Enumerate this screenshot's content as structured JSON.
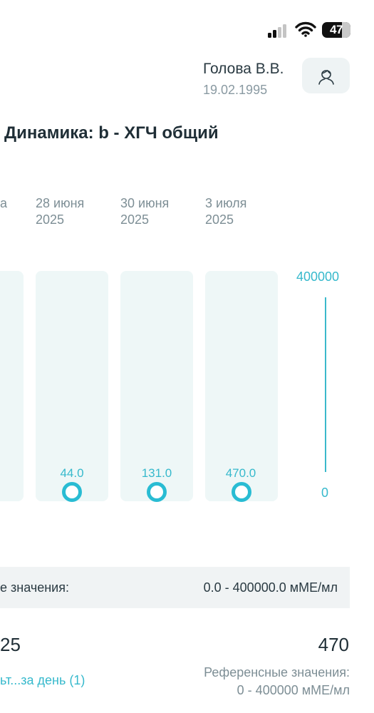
{
  "status_bar": {
    "battery": "47"
  },
  "patient": {
    "name": "Голова В.В.",
    "birth_date": "19.02.1995"
  },
  "chart_title": "Динамика: b - ХГЧ общий",
  "chart_data": {
    "type": "scatter",
    "title": "Динамика: b - ХГЧ общий",
    "partial_first_label": "а",
    "categories": [
      {
        "date": "28 июня",
        "year": "2025"
      },
      {
        "date": "30 июня",
        "year": "2025"
      },
      {
        "date": "3 июля",
        "year": "2025"
      }
    ],
    "values": [
      44.0,
      131.0,
      470.0
    ],
    "value_labels": [
      "44.0",
      "131.0",
      "470.0"
    ],
    "ylim": [
      0,
      400000
    ],
    "y_max_label": "400000",
    "y_min_label": "0"
  },
  "reference": {
    "label_partial": "е значения:",
    "value": "0.0 - 400000.0 мМЕ/мл"
  },
  "summary": {
    "left_value_partial": "25",
    "link_partial": "ьт...за день (1)",
    "right_value": "470",
    "ref_label": "Референсные значения:",
    "ref_value": "0 - 400000 мМЕ/мл"
  },
  "icons": {
    "signal": "cellular-signal-icon",
    "wifi": "wifi-icon",
    "battery": "battery-icon",
    "profile": "user-profile-icon"
  }
}
